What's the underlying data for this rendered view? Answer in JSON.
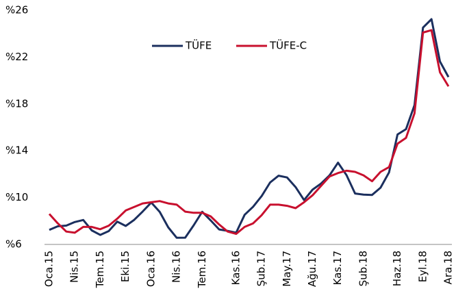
{
  "chart_data": {
    "type": "line",
    "categories": [
      "Oca.15",
      null,
      null,
      "Nis.15",
      null,
      null,
      "Tem.15",
      null,
      null,
      "Eki.15",
      null,
      null,
      "Oca.16",
      null,
      null,
      "Nis.16",
      null,
      null,
      "Tem.16",
      null,
      null,
      null,
      "Kas.16",
      null,
      null,
      "Şub.17",
      null,
      null,
      "May.17",
      null,
      null,
      "Ağu.17",
      null,
      null,
      "Kas.17",
      null,
      null,
      "Şub.18",
      null,
      null,
      null,
      "Haz.18",
      null,
      null,
      "Eyl.18",
      null,
      null,
      "Ara.18"
    ],
    "series": [
      {
        "name": "TÜFE",
        "color": "#1b2f5e",
        "values": [
          7.24,
          7.55,
          7.61,
          7.91,
          8.09,
          7.2,
          6.81,
          7.14,
          7.95,
          7.58,
          8.1,
          8.81,
          9.58,
          8.78,
          7.46,
          6.57,
          6.58,
          7.64,
          8.79,
          8.05,
          7.28,
          7.16,
          7.0,
          8.53,
          9.22,
          10.13,
          11.29,
          11.87,
          11.72,
          10.9,
          9.79,
          10.68,
          11.2,
          11.9,
          12.98,
          11.92,
          10.35,
          10.26,
          10.23,
          10.85,
          12.15,
          15.39,
          15.85,
          17.9,
          24.52,
          25.24,
          21.62,
          20.3
        ]
      },
      {
        "name": "TÜFE-C",
        "color": "#c8102e",
        "values": [
          8.6,
          7.8,
          7.1,
          7.0,
          7.5,
          7.5,
          7.3,
          7.6,
          8.2,
          8.9,
          9.2,
          9.5,
          9.6,
          9.7,
          9.5,
          9.4,
          8.8,
          8.7,
          8.7,
          8.4,
          7.7,
          7.1,
          6.9,
          7.5,
          7.8,
          8.5,
          9.4,
          9.4,
          9.3,
          9.1,
          9.6,
          10.2,
          11.0,
          11.8,
          12.1,
          12.3,
          12.2,
          11.9,
          11.4,
          12.2,
          12.6,
          14.6,
          15.1,
          17.2,
          24.1,
          24.3,
          20.7,
          19.5
        ]
      }
    ],
    "ylim": [
      6,
      26
    ],
    "yticks": [
      {
        "value": 6,
        "label": "%6"
      },
      {
        "value": 10,
        "label": "%10"
      },
      {
        "value": 14,
        "label": "%14"
      },
      {
        "value": 18,
        "label": "%18"
      },
      {
        "value": 22,
        "label": "%22"
      },
      {
        "value": 26,
        "label": "%26"
      }
    ],
    "grid": false,
    "legend": "top"
  }
}
